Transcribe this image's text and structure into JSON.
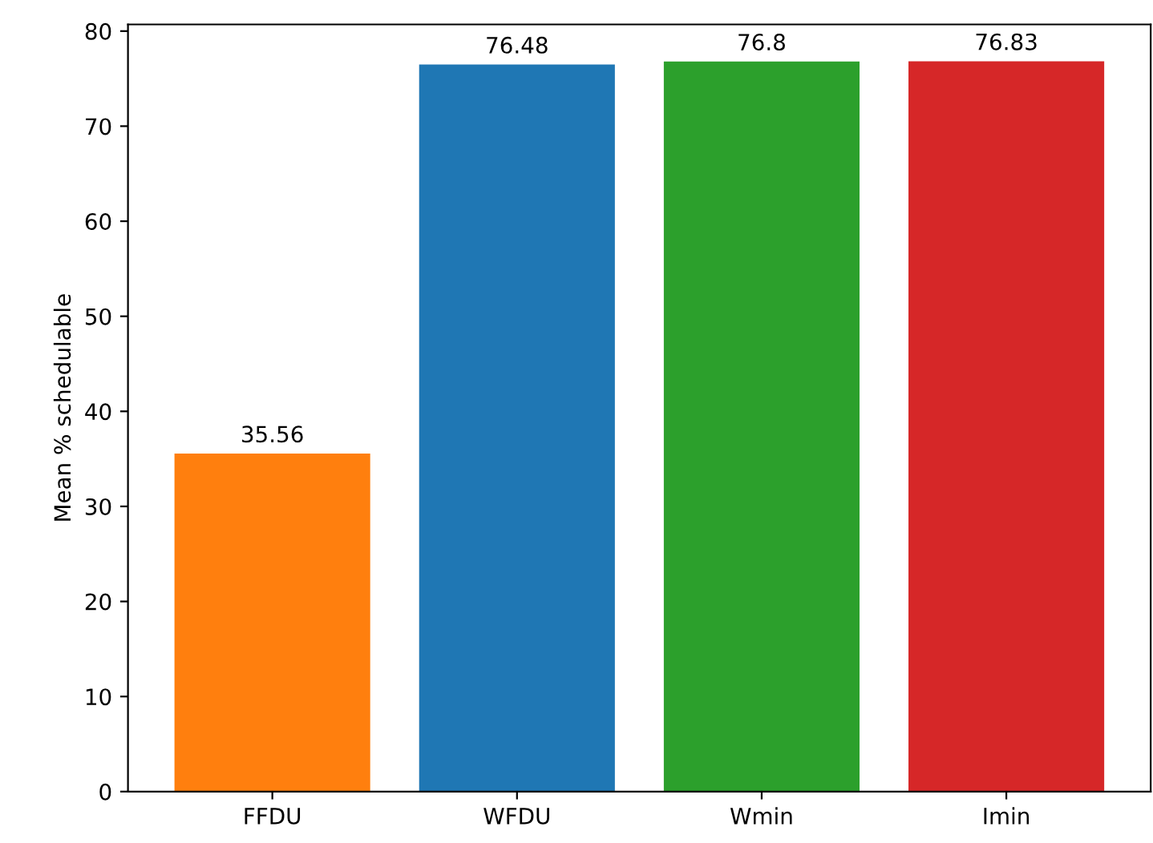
{
  "chart_data": {
    "type": "bar",
    "ylabel": "Mean % schedulable",
    "categories": [
      "FFDU",
      "WFDU",
      "Wmin",
      "Imin"
    ],
    "values": [
      35.56,
      76.48,
      76.8,
      76.83
    ],
    "colors": [
      "#ff7f0e",
      "#1f77b4",
      "#2ca02c",
      "#d62728"
    ],
    "data_labels": true,
    "ylim": [
      0,
      80.7
    ],
    "yticks": [
      0,
      10,
      20,
      30,
      40,
      50,
      60,
      70,
      80
    ],
    "grid": false
  }
}
